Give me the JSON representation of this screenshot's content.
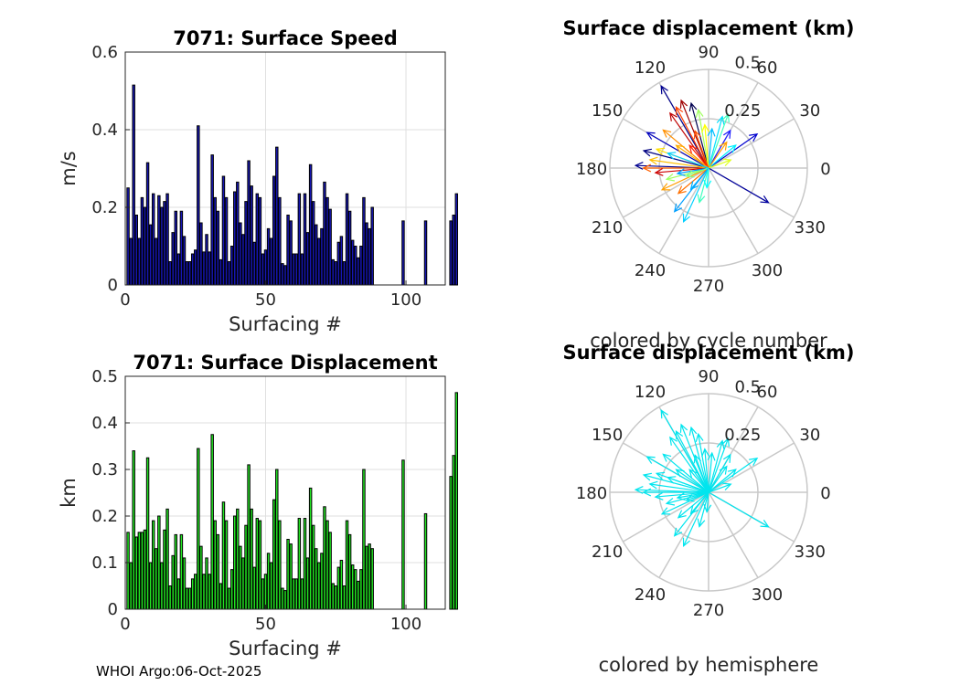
{
  "chart_data": [
    {
      "type": "bar",
      "title": "7071: Surface Speed",
      "xlabel": "Surfacing #",
      "ylabel": "m/s",
      "xlim": [
        0,
        114
      ],
      "ylim": [
        0,
        0.6
      ],
      "xticks": [
        0,
        50,
        100
      ],
      "yticks": [
        0,
        0.2,
        0.4,
        0.6
      ],
      "grid": true,
      "bar_color": "#1616b4",
      "values": [
        0.25,
        0.12,
        0.515,
        0.18,
        0.12,
        0.225,
        0.2,
        0.315,
        0.155,
        0.235,
        0.12,
        0.23,
        0.2,
        0.215,
        0.235,
        0.06,
        0.135,
        0.19,
        0.08,
        0.19,
        0.125,
        0.06,
        0.06,
        0.08,
        0.09,
        0.41,
        0.16,
        0.085,
        0.13,
        0.085,
        0.335,
        0.225,
        0.19,
        0.065,
        0.28,
        0.225,
        0.06,
        0.1,
        0.24,
        0.265,
        0.16,
        0.13,
        0.215,
        0.32,
        0.255,
        0.11,
        0.235,
        0.225,
        0.08,
        0.09,
        0.145,
        0.12,
        0.28,
        0.355,
        0.225,
        0.055,
        0.05,
        0.18,
        0.165,
        0.08,
        0.08,
        0.235,
        0.08,
        0.235,
        0.135,
        0.31,
        0.215,
        0.155,
        0.12,
        0.145,
        0.265,
        0.225,
        0.195,
        0.065,
        0.06,
        0.11,
        0.125,
        0.06,
        0.235,
        0.19,
        0.115,
        0.1,
        0.07,
        0.1,
        0.225,
        0.16,
        0.145,
        0.2,
        null,
        null,
        null,
        null,
        null,
        null,
        null,
        null,
        null,
        null,
        0.165,
        null,
        null,
        null,
        null,
        null,
        null,
        null,
        0.165,
        null,
        null,
        null,
        null,
        null,
        null,
        null,
        null,
        0.165,
        0.18,
        0.235
      ]
    },
    {
      "type": "bar",
      "title": "7071: Surface Displacement",
      "xlabel": "Surfacing #",
      "ylabel": "km",
      "xlim": [
        0,
        114
      ],
      "ylim": [
        0,
        0.5
      ],
      "xticks": [
        0,
        50,
        100
      ],
      "yticks": [
        0,
        0.1,
        0.2,
        0.3,
        0.4,
        0.5
      ],
      "grid": true,
      "bar_color": "#22e622",
      "values": [
        0.165,
        0.1,
        0.34,
        0.155,
        0.165,
        0.165,
        0.17,
        0.325,
        0.1,
        0.19,
        0.13,
        0.2,
        0.1,
        0.17,
        0.215,
        0.05,
        0.115,
        0.16,
        0.065,
        0.16,
        0.11,
        0.045,
        0.045,
        0.065,
        0.075,
        0.345,
        0.135,
        0.075,
        0.11,
        0.075,
        0.375,
        0.19,
        0.16,
        0.055,
        0.23,
        0.19,
        0.045,
        0.085,
        0.2,
        0.215,
        0.135,
        0.11,
        0.18,
        0.31,
        0.215,
        0.09,
        0.195,
        0.19,
        0.065,
        0.075,
        0.12,
        0.1,
        0.235,
        0.3,
        0.19,
        0.045,
        0.04,
        0.15,
        0.14,
        0.065,
        0.065,
        0.195,
        0.065,
        0.195,
        0.11,
        0.26,
        0.18,
        0.13,
        0.1,
        0.12,
        0.22,
        0.19,
        0.165,
        0.055,
        0.05,
        0.09,
        0.105,
        0.05,
        0.19,
        0.16,
        0.095,
        0.085,
        0.06,
        0.085,
        0.3,
        0.135,
        0.14,
        0.13,
        null,
        null,
        null,
        null,
        null,
        null,
        null,
        null,
        null,
        null,
        0.32,
        null,
        null,
        null,
        null,
        null,
        null,
        null,
        0.205,
        null,
        null,
        null,
        null,
        null,
        null,
        null,
        null,
        0.285,
        0.33,
        0.465
      ]
    },
    {
      "type": "polar",
      "title": "Surface displacement (km)",
      "subtitle": "colored by cycle number",
      "rlim": [
        0,
        0.5
      ],
      "r_tick_labels": [
        "0.25",
        "0.5"
      ],
      "angle_ticks": [
        "0",
        "30",
        "60",
        "90",
        "120",
        "150",
        "180",
        "210",
        "240",
        "270",
        "300",
        "330"
      ],
      "vectors": [
        {
          "angle_deg": 120,
          "r": 0.48,
          "color": "#00008f"
        },
        {
          "angle_deg": 105,
          "r": 0.34,
          "color": "#00004f"
        },
        {
          "angle_deg": 100,
          "r": 0.3,
          "color": "#9fff60"
        },
        {
          "angle_deg": 150,
          "r": 0.36,
          "color": "#0000bf"
        },
        {
          "angle_deg": 165,
          "r": 0.34,
          "color": "#000080"
        },
        {
          "angle_deg": 178,
          "r": 0.37,
          "color": "#00008f"
        },
        {
          "angle_deg": 35,
          "r": 0.3,
          "color": "#0000cf"
        },
        {
          "angle_deg": 60,
          "r": 0.22,
          "color": "#1f1fff"
        },
        {
          "angle_deg": 330,
          "r": 0.35,
          "color": "#00009f"
        },
        {
          "angle_deg": 125,
          "r": 0.34,
          "color": "#bf0000"
        },
        {
          "angle_deg": 118,
          "r": 0.35,
          "color": "#ff4000"
        },
        {
          "angle_deg": 140,
          "r": 0.3,
          "color": "#ff8f00"
        },
        {
          "angle_deg": 112,
          "r": 0.37,
          "color": "#9f0000"
        },
        {
          "angle_deg": 180,
          "r": 0.33,
          "color": "#ff6000"
        },
        {
          "angle_deg": 172,
          "r": 0.3,
          "color": "#ffbf00"
        },
        {
          "angle_deg": 185,
          "r": 0.27,
          "color": "#cf0000"
        },
        {
          "angle_deg": 160,
          "r": 0.28,
          "color": "#ffe000"
        },
        {
          "angle_deg": 195,
          "r": 0.22,
          "color": "#9fff60"
        },
        {
          "angle_deg": 205,
          "r": 0.26,
          "color": "#ff9f00"
        },
        {
          "angle_deg": 220,
          "r": 0.2,
          "color": "#ff7000"
        },
        {
          "angle_deg": 245,
          "r": 0.3,
          "color": "#00cfff"
        },
        {
          "angle_deg": 232,
          "r": 0.28,
          "color": "#009fff"
        },
        {
          "angle_deg": 255,
          "r": 0.18,
          "color": "#40ffbf"
        },
        {
          "angle_deg": 75,
          "r": 0.27,
          "color": "#00dfff"
        },
        {
          "angle_deg": 70,
          "r": 0.29,
          "color": "#40ffbf"
        },
        {
          "angle_deg": 85,
          "r": 0.2,
          "color": "#00bfff"
        },
        {
          "angle_deg": 95,
          "r": 0.22,
          "color": "#ffff00"
        },
        {
          "angle_deg": 130,
          "r": 0.15,
          "color": "#ff2000"
        },
        {
          "angle_deg": 145,
          "r": 0.2,
          "color": "#ffaf00"
        },
        {
          "angle_deg": 40,
          "r": 0.18,
          "color": "#00efff"
        },
        {
          "angle_deg": 55,
          "r": 0.16,
          "color": "#ff9f00"
        },
        {
          "angle_deg": 190,
          "r": 0.16,
          "color": "#009fff"
        },
        {
          "angle_deg": 200,
          "r": 0.12,
          "color": "#7fff80"
        },
        {
          "angle_deg": 20,
          "r": 0.12,
          "color": "#dfff20"
        },
        {
          "angle_deg": 230,
          "r": 0.14,
          "color": "#00afff"
        },
        {
          "angle_deg": 265,
          "r": 0.1,
          "color": "#00ffff"
        },
        {
          "angle_deg": 110,
          "r": 0.2,
          "color": "#ff5000"
        },
        {
          "angle_deg": 160,
          "r": 0.22,
          "color": "#00cfff"
        }
      ]
    },
    {
      "type": "polar",
      "title": "Surface displacement (km)",
      "subtitle": "colored by hemisphere",
      "rlim": [
        0,
        0.5
      ],
      "r_tick_labels": [
        "0.25",
        "0.5"
      ],
      "angle_ticks": [
        "0",
        "30",
        "60",
        "90",
        "120",
        "150",
        "180",
        "210",
        "240",
        "270",
        "300",
        "330"
      ],
      "vector_color": "#00e5ee",
      "vectors": [
        {
          "angle_deg": 120,
          "r": 0.48
        },
        {
          "angle_deg": 105,
          "r": 0.34
        },
        {
          "angle_deg": 100,
          "r": 0.3
        },
        {
          "angle_deg": 150,
          "r": 0.36
        },
        {
          "angle_deg": 165,
          "r": 0.34
        },
        {
          "angle_deg": 178,
          "r": 0.37
        },
        {
          "angle_deg": 35,
          "r": 0.3
        },
        {
          "angle_deg": 60,
          "r": 0.22
        },
        {
          "angle_deg": 330,
          "r": 0.35
        },
        {
          "angle_deg": 125,
          "r": 0.34
        },
        {
          "angle_deg": 118,
          "r": 0.35
        },
        {
          "angle_deg": 140,
          "r": 0.3
        },
        {
          "angle_deg": 112,
          "r": 0.37
        },
        {
          "angle_deg": 180,
          "r": 0.33
        },
        {
          "angle_deg": 172,
          "r": 0.3
        },
        {
          "angle_deg": 185,
          "r": 0.27
        },
        {
          "angle_deg": 160,
          "r": 0.28
        },
        {
          "angle_deg": 195,
          "r": 0.22
        },
        {
          "angle_deg": 205,
          "r": 0.26
        },
        {
          "angle_deg": 220,
          "r": 0.2
        },
        {
          "angle_deg": 245,
          "r": 0.3
        },
        {
          "angle_deg": 232,
          "r": 0.28
        },
        {
          "angle_deg": 255,
          "r": 0.18
        },
        {
          "angle_deg": 75,
          "r": 0.27
        },
        {
          "angle_deg": 70,
          "r": 0.29
        },
        {
          "angle_deg": 85,
          "r": 0.2
        },
        {
          "angle_deg": 95,
          "r": 0.22
        },
        {
          "angle_deg": 130,
          "r": 0.15
        },
        {
          "angle_deg": 145,
          "r": 0.2
        },
        {
          "angle_deg": 40,
          "r": 0.18
        },
        {
          "angle_deg": 55,
          "r": 0.16
        },
        {
          "angle_deg": 190,
          "r": 0.16
        },
        {
          "angle_deg": 200,
          "r": 0.12
        },
        {
          "angle_deg": 20,
          "r": 0.12
        },
        {
          "angle_deg": 230,
          "r": 0.14
        },
        {
          "angle_deg": 265,
          "r": 0.1
        },
        {
          "angle_deg": 110,
          "r": 0.2
        },
        {
          "angle_deg": 160,
          "r": 0.22
        }
      ]
    }
  ],
  "footer": {
    "note": "WHOI Argo:06-Oct-2025"
  }
}
